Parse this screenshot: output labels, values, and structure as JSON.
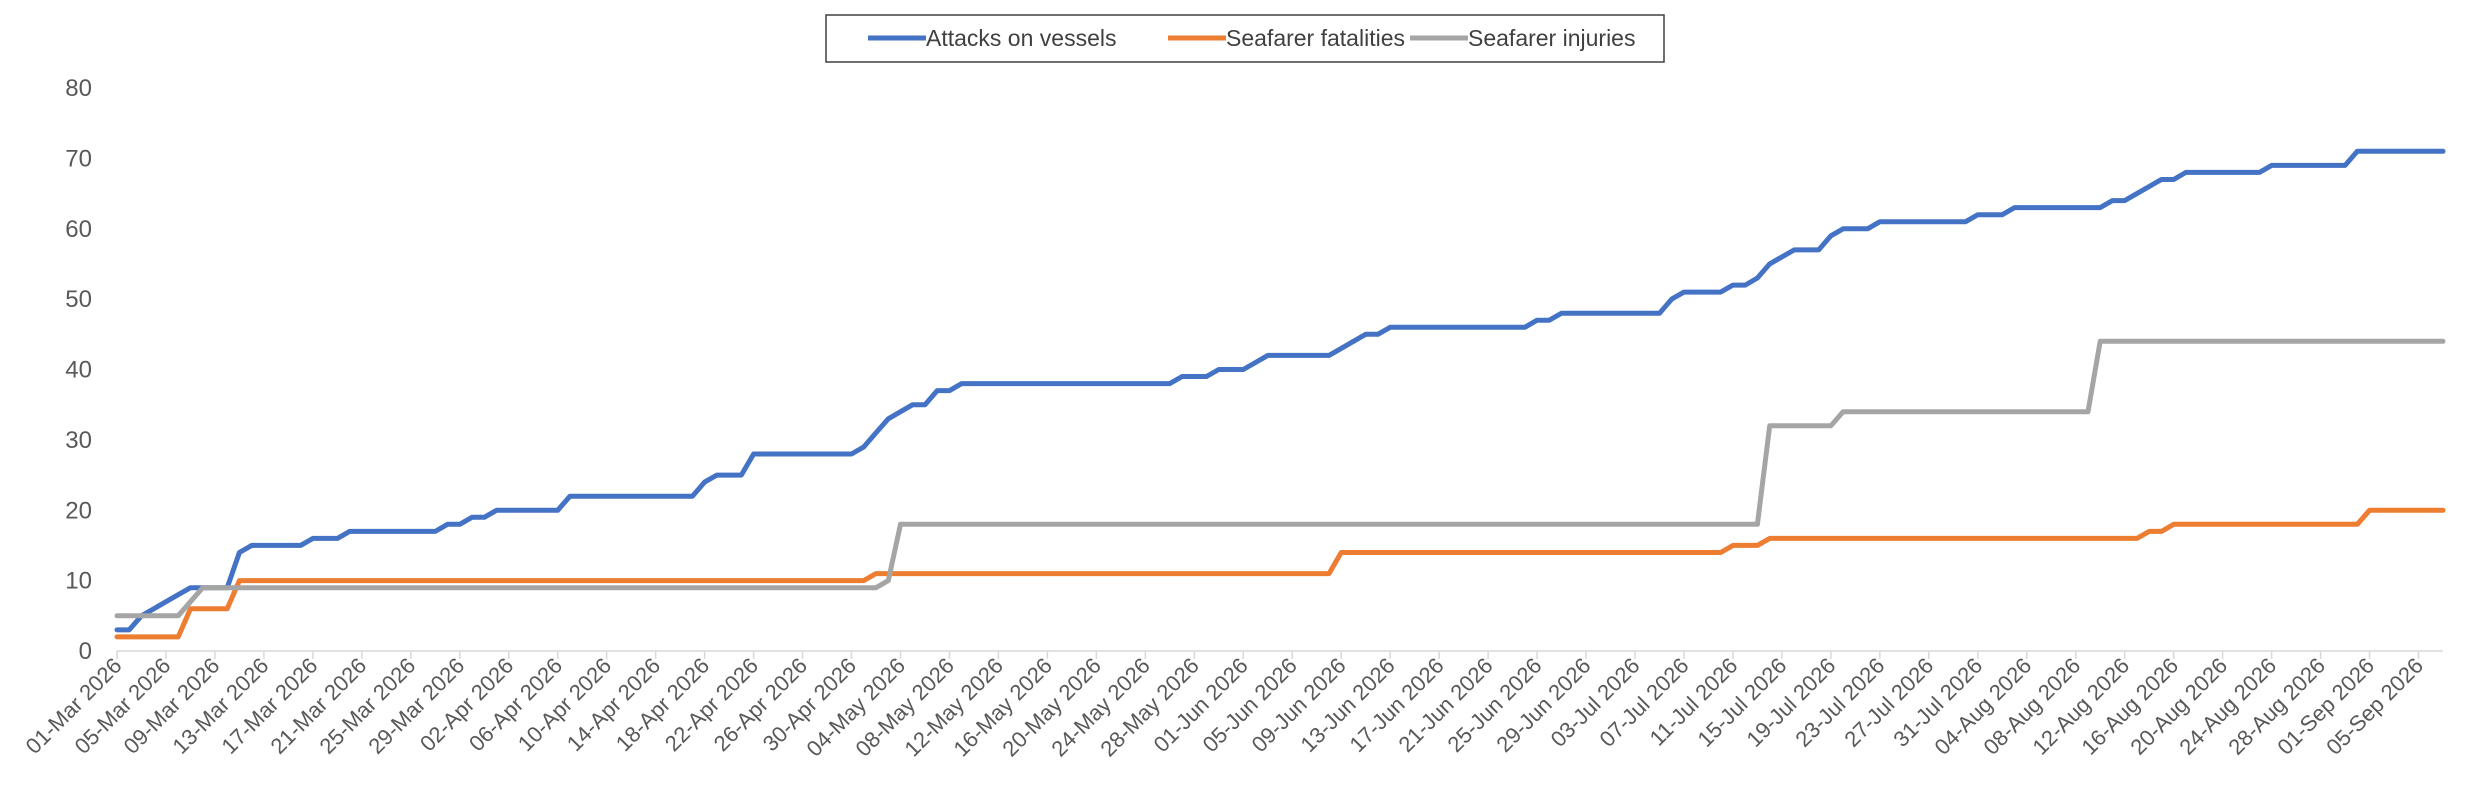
{
  "chart_data": {
    "type": "line",
    "title": "",
    "xlabel": "",
    "ylabel": "",
    "ylim": [
      0,
      80
    ],
    "yticks": [
      0,
      10,
      20,
      30,
      40,
      50,
      60,
      70,
      80
    ],
    "xlim": [
      "2026-03-01",
      "2026-09-07"
    ],
    "legend_position": "top-center",
    "grid": false,
    "x_tick_labels": [
      "01-Mar 2026",
      "05-Mar 2026",
      "09-Mar 2026",
      "13-Mar 2026",
      "17-Mar 2026",
      "21-Mar 2026",
      "25-Mar 2026",
      "29-Mar 2026",
      "02-Apr 2026",
      "06-Apr 2026",
      "10-Apr 2026",
      "14-Apr 2026",
      "18-Apr 2026",
      "22-Apr 2026",
      "26-Apr 2026",
      "30-Apr 2026",
      "04-May 2026",
      "08-May 2026",
      "12-May 2026",
      "16-May 2026",
      "20-May 2026",
      "24-May 2026",
      "28-May 2026",
      "01-Jun 2026",
      "05-Jun 2026",
      "09-Jun 2026",
      "13-Jun 2026",
      "17-Jun 2026",
      "21-Jun 2026",
      "25-Jun 2026",
      "29-Jun 2026",
      "03-Jul 2026",
      "07-Jul 2026",
      "11-Jul 2026",
      "15-Jul 2026",
      "19-Jul 2026",
      "23-Jul 2026",
      "27-Jul 2026",
      "31-Jul 2026",
      "04-Aug 2026",
      "08-Aug 2026",
      "12-Aug 2026",
      "16-Aug 2026",
      "20-Aug 2026",
      "24-Aug 2026",
      "28-Aug 2026",
      "01-Sep 2026",
      "05-Sep 2026"
    ],
    "series": [
      {
        "name": "Attacks on vessels",
        "color": "#4472C4",
        "points": [
          [
            "2026-03-01",
            3
          ],
          [
            "2026-03-02",
            3
          ],
          [
            "2026-03-03",
            5
          ],
          [
            "2026-03-04",
            6
          ],
          [
            "2026-03-05",
            7
          ],
          [
            "2026-03-06",
            8
          ],
          [
            "2026-03-07",
            9
          ],
          [
            "2026-03-08",
            9
          ],
          [
            "2026-03-09",
            9
          ],
          [
            "2026-03-10",
            9
          ],
          [
            "2026-03-11",
            14
          ],
          [
            "2026-03-12",
            15
          ],
          [
            "2026-03-16",
            15
          ],
          [
            "2026-03-17",
            16
          ],
          [
            "2026-03-19",
            16
          ],
          [
            "2026-03-20",
            17
          ],
          [
            "2026-03-27",
            17
          ],
          [
            "2026-03-28",
            18
          ],
          [
            "2026-03-29",
            18
          ],
          [
            "2026-03-30",
            19
          ],
          [
            "2026-03-31",
            19
          ],
          [
            "2026-04-01",
            20
          ],
          [
            "2026-04-06",
            20
          ],
          [
            "2026-04-07",
            22
          ],
          [
            "2026-04-17",
            22
          ],
          [
            "2026-04-18",
            24
          ],
          [
            "2026-04-19",
            25
          ],
          [
            "2026-04-21",
            25
          ],
          [
            "2026-04-22",
            28
          ],
          [
            "2026-04-30",
            28
          ],
          [
            "2026-05-01",
            29
          ],
          [
            "2026-05-02",
            31
          ],
          [
            "2026-05-03",
            33
          ],
          [
            "2026-05-04",
            34
          ],
          [
            "2026-05-05",
            35
          ],
          [
            "2026-05-06",
            35
          ],
          [
            "2026-05-07",
            37
          ],
          [
            "2026-05-08",
            37
          ],
          [
            "2026-05-09",
            38
          ],
          [
            "2026-05-26",
            38
          ],
          [
            "2026-05-27",
            39
          ],
          [
            "2026-05-29",
            39
          ],
          [
            "2026-05-30",
            40
          ],
          [
            "2026-06-01",
            40
          ],
          [
            "2026-06-02",
            41
          ],
          [
            "2026-06-03",
            42
          ],
          [
            "2026-06-08",
            42
          ],
          [
            "2026-06-09",
            43
          ],
          [
            "2026-06-10",
            44
          ],
          [
            "2026-06-11",
            45
          ],
          [
            "2026-06-12",
            45
          ],
          [
            "2026-06-13",
            46
          ],
          [
            "2026-06-24",
            46
          ],
          [
            "2026-06-25",
            47
          ],
          [
            "2026-06-26",
            47
          ],
          [
            "2026-06-27",
            48
          ],
          [
            "2026-07-05",
            48
          ],
          [
            "2026-07-06",
            50
          ],
          [
            "2026-07-07",
            51
          ],
          [
            "2026-07-10",
            51
          ],
          [
            "2026-07-11",
            52
          ],
          [
            "2026-07-12",
            52
          ],
          [
            "2026-07-13",
            53
          ],
          [
            "2026-07-14",
            55
          ],
          [
            "2026-07-15",
            56
          ],
          [
            "2026-07-16",
            57
          ],
          [
            "2026-07-18",
            57
          ],
          [
            "2026-07-19",
            59
          ],
          [
            "2026-07-20",
            60
          ],
          [
            "2026-07-22",
            60
          ],
          [
            "2026-07-23",
            61
          ],
          [
            "2026-07-30",
            61
          ],
          [
            "2026-07-31",
            62
          ],
          [
            "2026-08-02",
            62
          ],
          [
            "2026-08-03",
            63
          ],
          [
            "2026-08-10",
            63
          ],
          [
            "2026-08-11",
            64
          ],
          [
            "2026-08-12",
            64
          ],
          [
            "2026-08-13",
            65
          ],
          [
            "2026-08-14",
            66
          ],
          [
            "2026-08-15",
            67
          ],
          [
            "2026-08-16",
            67
          ],
          [
            "2026-08-17",
            68
          ],
          [
            "2026-08-23",
            68
          ],
          [
            "2026-08-24",
            69
          ],
          [
            "2026-08-30",
            69
          ],
          [
            "2026-08-31",
            71
          ],
          [
            "2026-09-07",
            71
          ]
        ]
      },
      {
        "name": "Seafarer fatalities",
        "color": "#ED7D31",
        "points": [
          [
            "2026-03-01",
            2
          ],
          [
            "2026-03-06",
            2
          ],
          [
            "2026-03-07",
            6
          ],
          [
            "2026-03-10",
            6
          ],
          [
            "2026-03-11",
            10
          ],
          [
            "2026-05-01",
            10
          ],
          [
            "2026-05-02",
            11
          ],
          [
            "2026-06-08",
            11
          ],
          [
            "2026-06-09",
            14
          ],
          [
            "2026-07-10",
            14
          ],
          [
            "2026-07-11",
            15
          ],
          [
            "2026-07-13",
            15
          ],
          [
            "2026-07-14",
            16
          ],
          [
            "2026-08-13",
            16
          ],
          [
            "2026-08-14",
            17
          ],
          [
            "2026-08-15",
            17
          ],
          [
            "2026-08-16",
            18
          ],
          [
            "2026-08-31",
            18
          ],
          [
            "2026-09-01",
            20
          ],
          [
            "2026-09-07",
            20
          ]
        ]
      },
      {
        "name": "Seafarer injuries",
        "color": "#A5A5A5",
        "points": [
          [
            "2026-03-01",
            5
          ],
          [
            "2026-03-06",
            5
          ],
          [
            "2026-03-07",
            7
          ],
          [
            "2026-03-08",
            9
          ],
          [
            "2026-05-02",
            9
          ],
          [
            "2026-05-03",
            10
          ],
          [
            "2026-05-04",
            18
          ],
          [
            "2026-07-13",
            18
          ],
          [
            "2026-07-14",
            32
          ],
          [
            "2026-07-19",
            32
          ],
          [
            "2026-07-20",
            34
          ],
          [
            "2026-08-09",
            34
          ],
          [
            "2026-08-10",
            44
          ],
          [
            "2026-09-07",
            44
          ]
        ]
      }
    ]
  }
}
